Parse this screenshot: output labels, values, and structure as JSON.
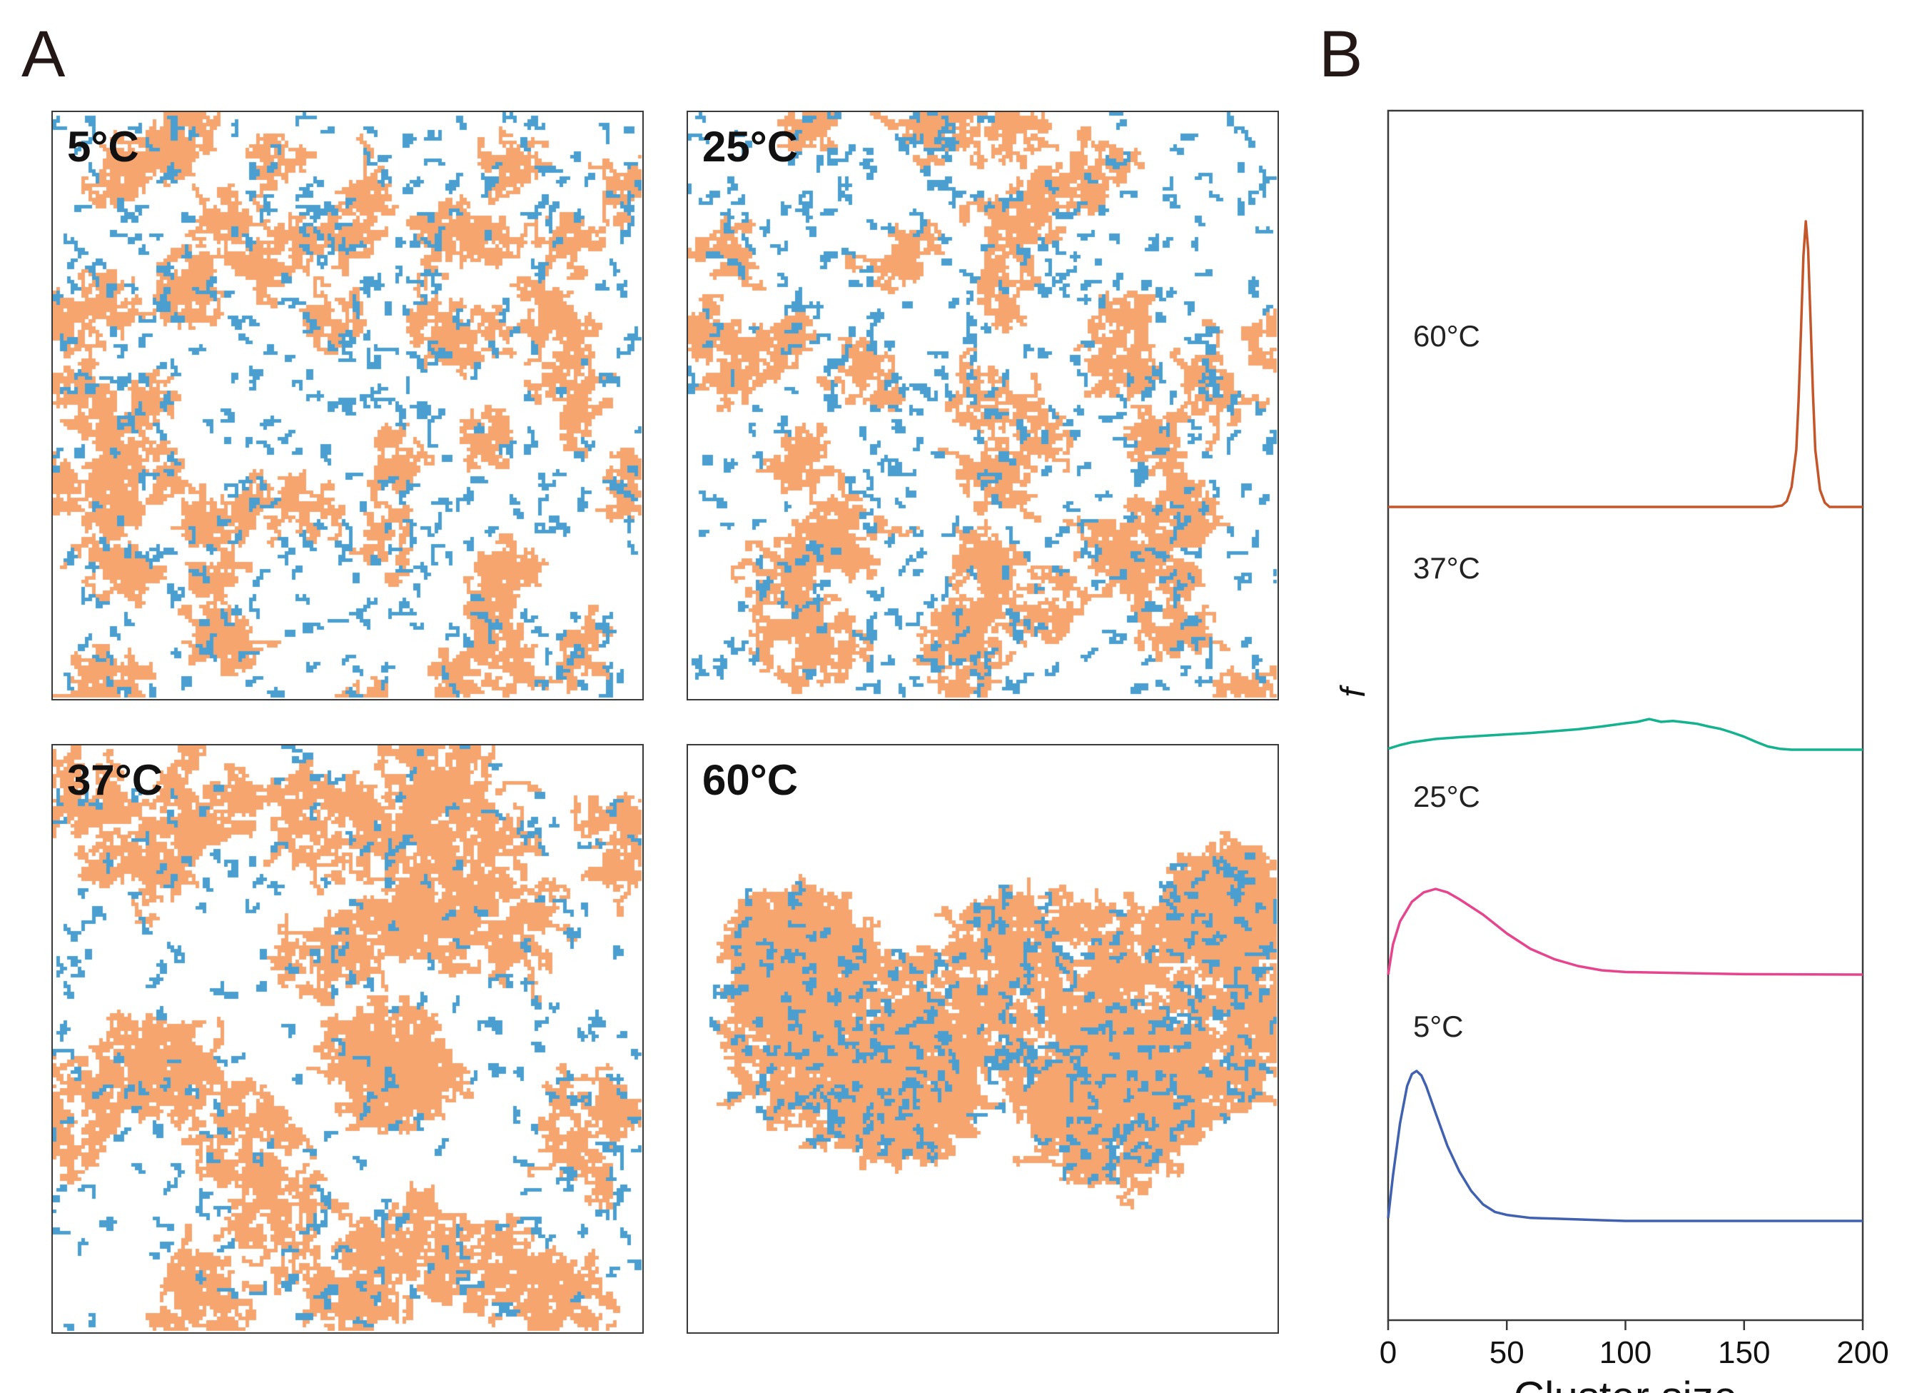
{
  "figure": {
    "panel_a_letter": "A",
    "panel_b_letter": "B"
  },
  "snapshots": [
    {
      "label": "5°C",
      "temperature_c": 5
    },
    {
      "label": "25°C",
      "temperature_c": 25
    },
    {
      "label": "37°C",
      "temperature_c": 37
    },
    {
      "label": "60°C",
      "temperature_c": 60
    }
  ],
  "colors": {
    "cluster": "#f6a56f",
    "chain": "#4a9fd0",
    "curve_5": "#4060b0",
    "curve_25": "#e6458e",
    "curve_37": "#14b28f",
    "curve_60": "#c4562a",
    "axis": "#3a3a3a"
  },
  "chart_data": {
    "type": "line",
    "title": "",
    "xlabel": "Cluster size",
    "ylabel": "f",
    "xlim": [
      0,
      200
    ],
    "xticks": [
      0,
      50,
      100,
      150,
      200
    ],
    "xtick_labels": [
      "0",
      "50",
      "100",
      "150",
      "200"
    ],
    "stacked_offsets": true,
    "series": [
      {
        "name": "60°C",
        "color": "#c4562a",
        "x": [
          0,
          150,
          162,
          166,
          168,
          170,
          172,
          173,
          174,
          175,
          176,
          177,
          178,
          179,
          180,
          182,
          184,
          186,
          190,
          200
        ],
        "y": [
          0,
          0,
          0,
          0.005,
          0.02,
          0.07,
          0.2,
          0.38,
          0.62,
          0.88,
          1.0,
          0.9,
          0.65,
          0.4,
          0.2,
          0.06,
          0.015,
          0,
          0,
          0
        ]
      },
      {
        "name": "37°C",
        "color": "#14b28f",
        "x": [
          0,
          5,
          10,
          20,
          30,
          40,
          50,
          60,
          70,
          80,
          90,
          100,
          105,
          110,
          115,
          120,
          125,
          130,
          135,
          140,
          145,
          150,
          155,
          160,
          165,
          170,
          180,
          200
        ],
        "y": [
          0.02,
          0.1,
          0.16,
          0.23,
          0.27,
          0.3,
          0.33,
          0.36,
          0.4,
          0.44,
          0.5,
          0.57,
          0.6,
          0.66,
          0.6,
          0.62,
          0.59,
          0.56,
          0.5,
          0.45,
          0.37,
          0.28,
          0.17,
          0.07,
          0.02,
          0,
          0,
          0
        ]
      },
      {
        "name": "25°C",
        "color": "#e6458e",
        "x": [
          0,
          2,
          5,
          10,
          15,
          20,
          25,
          30,
          40,
          50,
          60,
          70,
          80,
          90,
          100,
          120,
          150,
          200
        ],
        "y": [
          0,
          0.35,
          0.62,
          0.85,
          0.96,
          1.0,
          0.96,
          0.88,
          0.7,
          0.48,
          0.3,
          0.18,
          0.1,
          0.05,
          0.03,
          0.02,
          0.005,
          0
        ]
      },
      {
        "name": "5°C",
        "color": "#4060b0",
        "x": [
          0,
          2,
          5,
          8,
          10,
          12,
          14,
          16,
          20,
          25,
          30,
          35,
          40,
          45,
          50,
          60,
          70,
          80,
          90,
          100,
          150,
          200
        ],
        "y": [
          0.02,
          0.3,
          0.65,
          0.9,
          0.98,
          1.0,
          0.97,
          0.9,
          0.72,
          0.5,
          0.33,
          0.2,
          0.11,
          0.06,
          0.04,
          0.02,
          0.015,
          0.01,
          0.005,
          0,
          0,
          0
        ]
      }
    ]
  }
}
